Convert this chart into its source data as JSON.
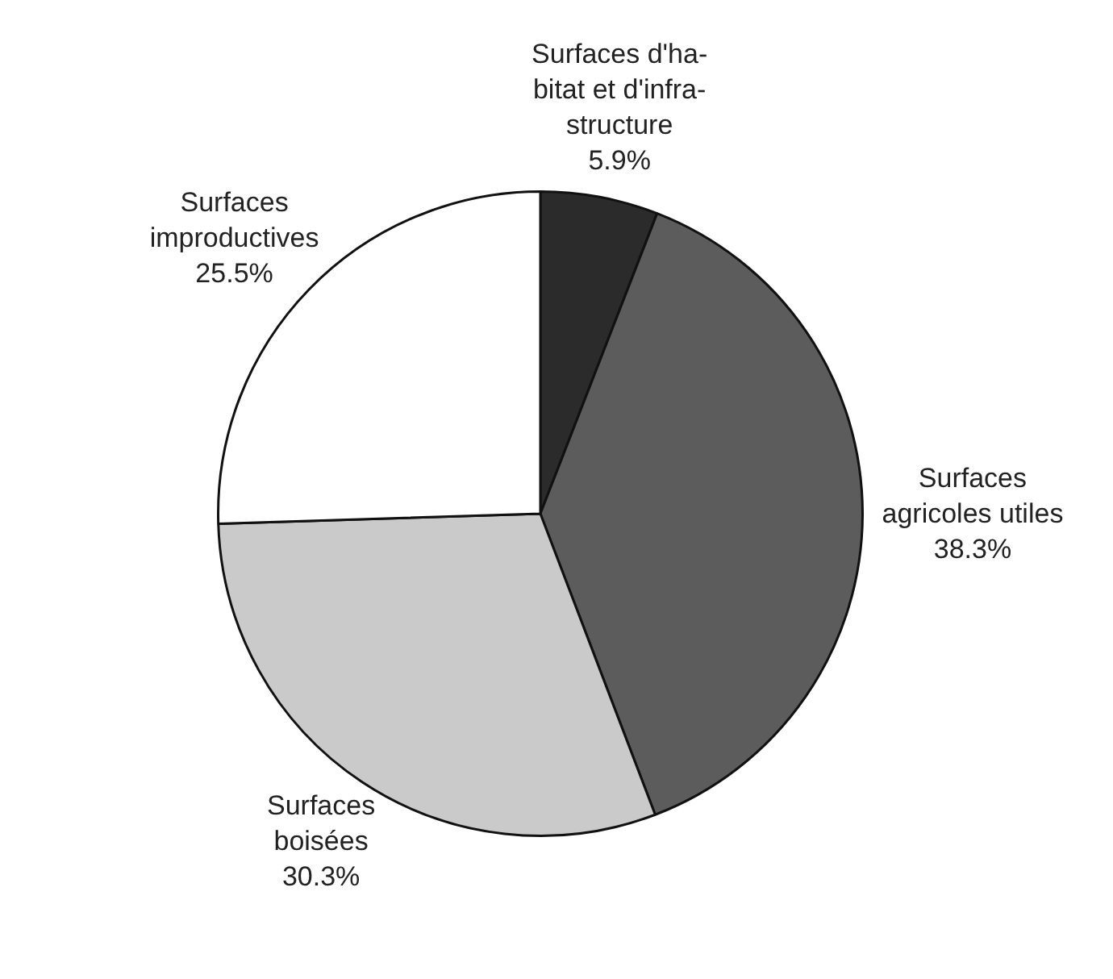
{
  "chart_data": {
    "type": "pie",
    "categories": [
      "Surfaces d'ha-\nbitat et d'infra-\nstructure",
      "Surfaces\nagricoles utiles",
      "Surfaces\nboisées",
      "Surfaces\nimproductives"
    ],
    "values": [
      5.9,
      38.3,
      30.3,
      25.5
    ],
    "value_labels": [
      "5.9%",
      "38.3%",
      "30.3%",
      "25.5%"
    ],
    "colors": [
      "#2b2b2b",
      "#5c5c5c",
      "#cacaca",
      "#ffffff"
    ],
    "legend": false
  }
}
